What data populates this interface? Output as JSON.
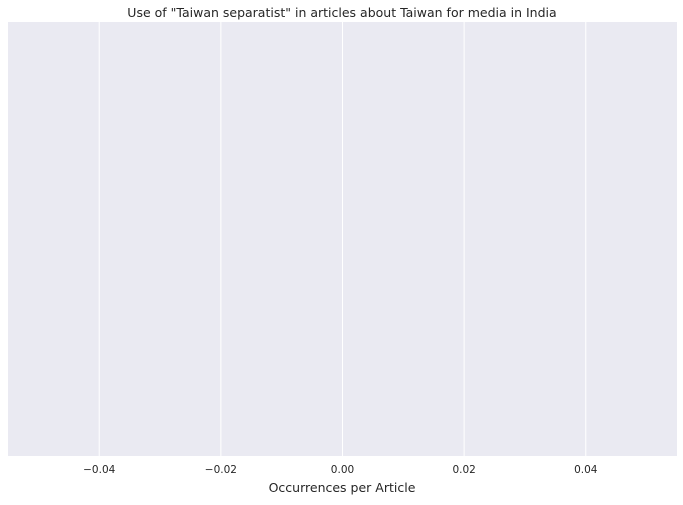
{
  "chart_data": {
    "type": "bar",
    "orientation": "horizontal",
    "title": "Use of \"Taiwan separatist\" in articles about Taiwan for media in India",
    "xlabel": "Occurrences per Article",
    "ylabel": "",
    "categories": [],
    "values": [],
    "xlim": [
      -0.055,
      0.055
    ],
    "xticks": [
      -0.04,
      -0.02,
      0.0,
      0.02,
      0.04
    ],
    "xtick_labels": [
      "−0.04",
      "−0.02",
      "0.00",
      "0.02",
      "0.04"
    ],
    "grid": true,
    "grid_axis": "x",
    "style": "seaborn-darkgrid",
    "colors": {
      "plot_background": "#eaeaf2",
      "grid": "#ffffff",
      "text": "#262626"
    }
  }
}
